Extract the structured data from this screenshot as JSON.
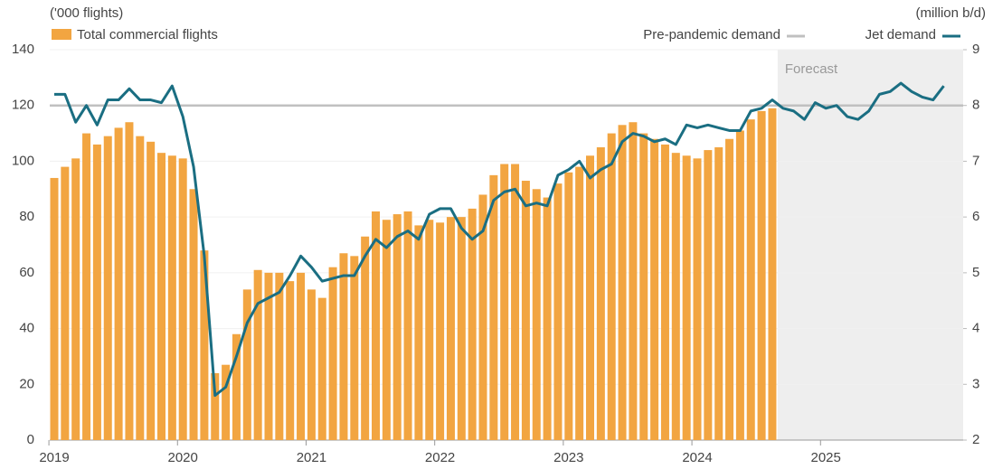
{
  "chart_data": {
    "type": "bar_line",
    "ylabel": "('000 flights)",
    "y2label": "(million b/d)",
    "categories": [
      "2019",
      null,
      null,
      null,
      null,
      null,
      null,
      null,
      null,
      null,
      null,
      null,
      "2020",
      null,
      null,
      null,
      null,
      null,
      null,
      null,
      null,
      null,
      null,
      null,
      "2021",
      null,
      null,
      null,
      null,
      null,
      null,
      null,
      null,
      null,
      null,
      null,
      "2022",
      null,
      null,
      null,
      null,
      null,
      null,
      null,
      null,
      null,
      null,
      null,
      "2023",
      null,
      null,
      null,
      null,
      null,
      null,
      null,
      null,
      null,
      null,
      null,
      "2024",
      null,
      null,
      null,
      null,
      null,
      null,
      null,
      null,
      null,
      null,
      null,
      "2025",
      null,
      null,
      null,
      null,
      null,
      null,
      null,
      null,
      null,
      null,
      null
    ],
    "series": [
      {
        "name": "Total commercial flights",
        "type": "bar",
        "color": "#f2a541",
        "values": [
          94,
          98,
          101,
          110,
          106,
          109,
          112,
          114,
          109,
          107,
          103,
          102,
          101,
          90,
          68,
          24,
          27,
          38,
          54,
          61,
          60,
          60,
          57,
          60,
          54,
          51,
          62,
          67,
          66,
          73,
          82,
          79,
          81,
          82,
          77,
          79,
          78,
          80,
          80,
          83,
          88,
          95,
          99,
          99,
          93,
          90,
          87,
          92,
          96,
          98,
          102,
          105,
          110,
          113,
          114,
          110,
          108,
          106,
          103,
          102,
          101,
          104,
          105,
          108,
          111,
          115,
          118,
          119,
          null,
          null,
          null,
          null,
          null,
          null,
          null,
          null,
          null,
          null,
          null,
          null,
          null,
          null,
          null,
          null
        ]
      },
      {
        "name": "Jet demand",
        "type": "line",
        "axis": "y2",
        "color": "#1a6e82",
        "values": [
          8.2,
          8.2,
          7.7,
          8.0,
          7.65,
          8.1,
          8.1,
          8.3,
          8.1,
          8.1,
          8.05,
          8.35,
          7.8,
          6.9,
          5.3,
          2.8,
          2.95,
          3.5,
          4.1,
          4.45,
          4.55,
          4.65,
          4.95,
          5.3,
          5.1,
          4.85,
          4.9,
          4.95,
          4.95,
          5.3,
          5.6,
          5.45,
          5.65,
          5.75,
          5.6,
          6.05,
          6.15,
          6.15,
          5.8,
          5.6,
          5.75,
          6.3,
          6.45,
          6.5,
          6.2,
          6.25,
          6.2,
          6.75,
          6.85,
          7.0,
          6.7,
          6.85,
          6.95,
          7.35,
          7.5,
          7.45,
          7.35,
          7.4,
          7.3,
          7.65,
          7.6,
          7.65,
          7.6,
          7.55,
          7.55,
          7.9,
          7.95,
          8.1,
          7.95,
          7.9,
          7.75,
          8.05,
          7.95,
          8.0,
          7.8,
          7.75,
          7.9,
          8.2,
          8.25,
          8.4,
          8.25,
          8.15,
          8.1,
          8.35
        ]
      }
    ],
    "reference_line": {
      "name": "Pre-pandemic demand",
      "value": 120,
      "color": "#c0c0c0"
    },
    "forecast": {
      "label": "Forecast",
      "from": 68,
      "color": "#eeeeee"
    },
    "ylim": [
      0,
      140
    ],
    "yticks": [
      0,
      20,
      40,
      60,
      80,
      100,
      120,
      140
    ],
    "y2lim": [
      2,
      9
    ],
    "y2ticks": [
      2,
      3,
      4,
      5,
      6,
      7,
      8,
      9
    ]
  }
}
